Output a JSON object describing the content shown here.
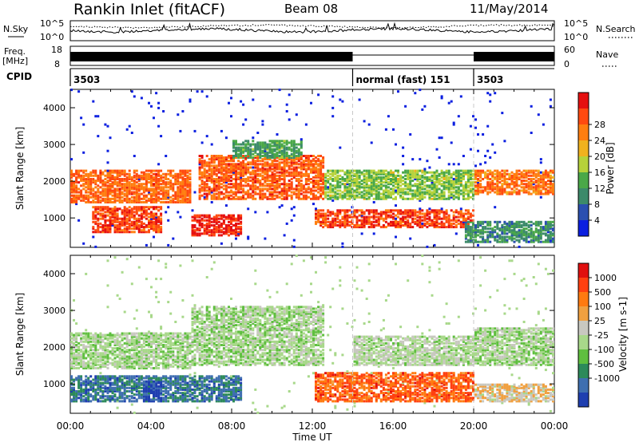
{
  "header": {
    "station": "Rankin Inlet (fitACF)",
    "beam": "Beam 08",
    "date": "11/May/2014"
  },
  "noise_panel": {
    "left_label": "N.Sky",
    "right_label": "N.Search",
    "left_ticks": [
      "10^5",
      "10^0"
    ],
    "right_ticks": [
      "10^5",
      "10^0"
    ]
  },
  "freq_panel": {
    "left_label_1": "Freq.",
    "left_label_2": "[MHz]",
    "left_ticks": [
      "18",
      "8"
    ],
    "right_label": "Nave",
    "right_ticks": [
      "60",
      "0"
    ]
  },
  "cpid_panel": {
    "label": "CPID",
    "segments": [
      {
        "text": "3503",
        "start_hour": 0,
        "end_hour": 14
      },
      {
        "text": "normal (fast) 151",
        "start_hour": 14,
        "end_hour": 20
      },
      {
        "text": "3503",
        "start_hour": 20,
        "end_hour": 24
      }
    ]
  },
  "chart_data": [
    {
      "type": "heatmap",
      "name": "power",
      "ylabel": "Slant Range [km]",
      "xlabel": "",
      "x_range_hours": [
        0,
        24
      ],
      "ylim": [
        200,
        4500
      ],
      "y_ticks": [
        "1000",
        "2000",
        "3000",
        "4000"
      ],
      "x_ticks": [
        "00:00",
        "04:00",
        "08:00",
        "12:00",
        "16:00",
        "20:00",
        "00:00"
      ],
      "colorbar": {
        "label": "Power [dB]",
        "tick_labels": [
          "4",
          "8",
          "12",
          "16",
          "20",
          "24",
          "28"
        ],
        "colors": [
          "#0b1fe0",
          "#2a4fb0",
          "#3c8a6a",
          "#4aa848",
          "#b6d23a",
          "#f0b21e",
          "#ff7e10",
          "#ff4a10",
          "#e51010"
        ]
      },
      "bands": [
        {
          "t0": 0.0,
          "t1": 6.0,
          "r0": 1400,
          "r1": 2300,
          "level": 0.78
        },
        {
          "t0": 1.0,
          "t1": 4.5,
          "r0": 600,
          "r1": 1300,
          "level": 0.85
        },
        {
          "t0": 6.3,
          "t1": 12.5,
          "r0": 1500,
          "r1": 2700,
          "level": 0.8
        },
        {
          "t0": 8.0,
          "t1": 11.5,
          "r0": 2600,
          "r1": 3100,
          "level": 0.35
        },
        {
          "t0": 6.0,
          "t1": 8.5,
          "r0": 500,
          "r1": 1100,
          "level": 0.9
        },
        {
          "t0": 12.0,
          "t1": 20.0,
          "r0": 700,
          "r1": 1200,
          "level": 0.85
        },
        {
          "t0": 12.5,
          "t1": 20.0,
          "r0": 1500,
          "r1": 2300,
          "level": 0.45
        },
        {
          "t0": 20.0,
          "t1": 24.0,
          "r0": 1600,
          "r1": 2300,
          "level": 0.75
        },
        {
          "t0": 19.5,
          "t1": 24.0,
          "r0": 300,
          "r1": 900,
          "level": 0.3
        }
      ]
    },
    {
      "type": "heatmap",
      "name": "velocity",
      "ylabel": "Slant Range [km]",
      "xlabel": "Time UT",
      "x_range_hours": [
        0,
        24
      ],
      "ylim": [
        200,
        4500
      ],
      "y_ticks": [
        "1000",
        "2000",
        "3000",
        "4000"
      ],
      "x_ticks": [
        "00:00",
        "04:00",
        "08:00",
        "12:00",
        "16:00",
        "20:00",
        "00:00"
      ],
      "colorbar": {
        "label": "Velocity [m s-1]",
        "tick_labels": [
          "1000",
          "500",
          "100",
          "25",
          "-25",
          "-100",
          "-500",
          "-1000"
        ],
        "colors": [
          "#1f3fb0",
          "#3f6fb0",
          "#2d8a5a",
          "#5fbf3f",
          "#a8d88a",
          "#c8c8c0",
          "#f0a040",
          "#ff7a10",
          "#ff4010",
          "#e00f0f"
        ]
      },
      "bands": [
        {
          "t0": 0.0,
          "t1": 6.0,
          "r0": 1400,
          "r1": 2400,
          "level": 0.45
        },
        {
          "t0": 6.0,
          "t1": 12.5,
          "r0": 1500,
          "r1": 3100,
          "level": 0.45
        },
        {
          "t0": 0.0,
          "t1": 8.5,
          "r0": 500,
          "r1": 1200,
          "level": 0.18
        },
        {
          "t0": 3.5,
          "t1": 4.5,
          "r0": 500,
          "r1": 1100,
          "level": 0.05
        },
        {
          "t0": 12.0,
          "t1": 20.0,
          "r0": 500,
          "r1": 1300,
          "level": 0.8
        },
        {
          "t0": 14.0,
          "t1": 20.0,
          "r0": 1500,
          "r1": 2300,
          "level": 0.48
        },
        {
          "t0": 20.0,
          "t1": 24.0,
          "r0": 1500,
          "r1": 2500,
          "level": 0.45
        },
        {
          "t0": 20.0,
          "t1": 24.0,
          "r0": 500,
          "r1": 1000,
          "level": 0.58
        }
      ]
    }
  ]
}
